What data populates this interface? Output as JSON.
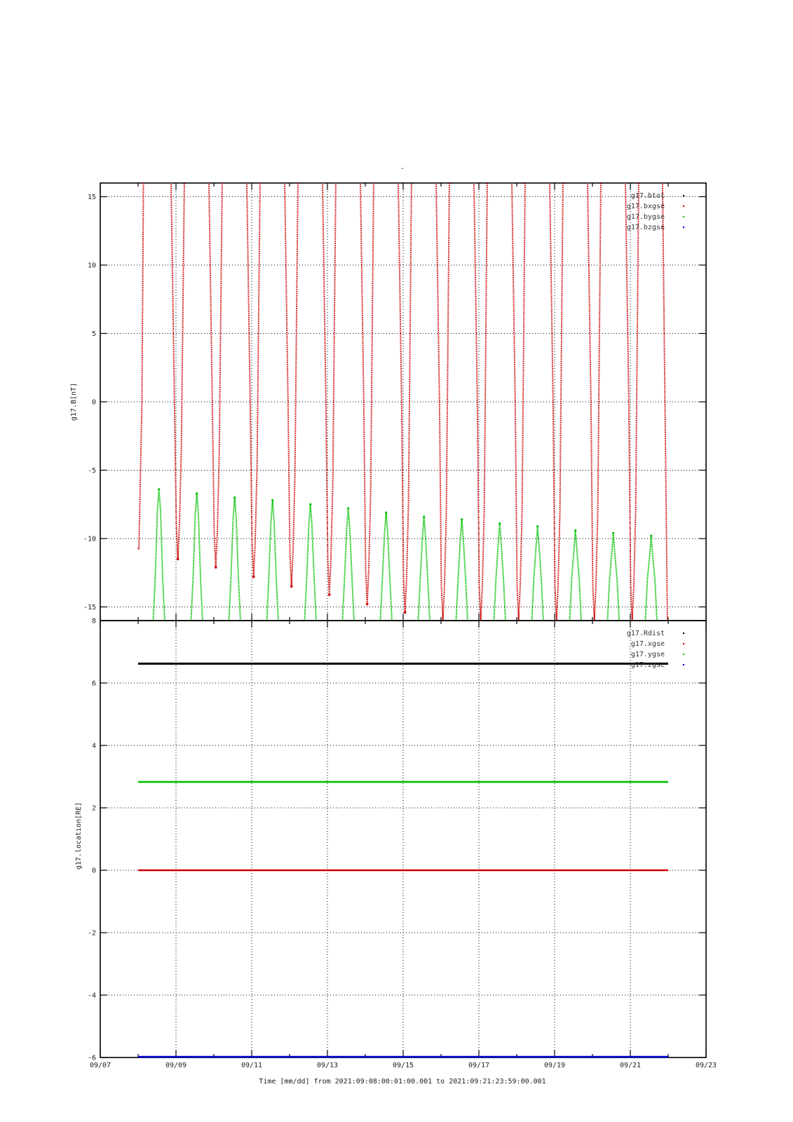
{
  "colors": {
    "btot": "#000000",
    "bxgse": "#cc0000",
    "bygse": "#00c000",
    "bzgse": "#0000cc",
    "grid": "#000000",
    "frame": "#000000"
  },
  "title": "-",
  "x_axis": {
    "ticks": [
      "09/07",
      "09/09",
      "09/11",
      "09/13",
      "09/15",
      "09/17",
      "09/19",
      "09/21",
      "09/23"
    ],
    "caption": "Time [mm/dd]  from 2021:09:08:00:01:00.001  to  2021:09:21:23:59:00.001"
  },
  "chart_data": [
    {
      "type": "scatter",
      "ylabel": "g17.B[nT]",
      "xlim_days": [
        7,
        23
      ],
      "ylim": [
        -16,
        16
      ],
      "yticks": [
        "15",
        "10",
        "5",
        "0",
        "-5",
        "-10",
        "-15"
      ],
      "ytick_values": [
        15,
        10,
        5,
        0,
        -5,
        -10,
        -15
      ],
      "grid": true,
      "legend_position": "top-right",
      "legend": [
        "g17.btot",
        "g17.bxgse",
        "g17.bygse",
        "g17.bzgse"
      ],
      "data_range_days": [
        8.0,
        22.0
      ],
      "series": [
        {
          "name": "g17.btot",
          "note": "off-scale (above 16 nT)",
          "values": []
        },
        {
          "name": "g17.bxgse",
          "pattern": "diurnal dips, minima (day, nT)",
          "minima": [
            [
              9.05,
              -11.5
            ],
            [
              10.05,
              -12.1
            ],
            [
              11.05,
              -12.8
            ],
            [
              12.05,
              -13.5
            ],
            [
              13.05,
              -14.1
            ],
            [
              14.05,
              -14.8
            ],
            [
              15.05,
              -15.4
            ],
            [
              16.05,
              -16.0
            ],
            [
              17.05,
              -16.0
            ],
            [
              18.05,
              -16.0
            ],
            [
              19.05,
              -16.0
            ],
            [
              20.05,
              -16.0
            ],
            [
              21.05,
              -16.0
            ]
          ],
          "start": [
            8.0,
            -10.7
          ]
        },
        {
          "name": "g17.bygse",
          "pattern": "diurnal peaks, maxima (day, nT)",
          "maxima": [
            [
              8.55,
              -6.4
            ],
            [
              9.55,
              -6.7
            ],
            [
              10.55,
              -7.0
            ],
            [
              11.55,
              -7.2
            ],
            [
              12.55,
              -7.5
            ],
            [
              13.55,
              -7.8
            ],
            [
              14.55,
              -8.1
            ],
            [
              15.55,
              -8.4
            ],
            [
              16.55,
              -8.6
            ],
            [
              17.55,
              -8.9
            ],
            [
              18.55,
              -9.1
            ],
            [
              19.55,
              -9.4
            ],
            [
              20.55,
              -9.6
            ],
            [
              21.55,
              -9.8
            ]
          ]
        },
        {
          "name": "g17.bzgse",
          "note": "off-scale (above 16 nT)",
          "values": []
        }
      ]
    },
    {
      "type": "line",
      "ylabel": "g17.location[RE]",
      "xlim_days": [
        7,
        23
      ],
      "ylim": [
        -6,
        8
      ],
      "yticks": [
        "8",
        "6",
        "4",
        "2",
        "0",
        "-2",
        "-4",
        "-6"
      ],
      "ytick_values": [
        8,
        6,
        4,
        2,
        0,
        -2,
        -4,
        -6
      ],
      "grid": true,
      "legend_position": "top-right",
      "legend": [
        "g17.Rdist",
        "g17.xgse",
        "g17.ygse",
        "g17.zgse"
      ],
      "data_range_days": [
        8.0,
        22.0
      ],
      "series": [
        {
          "name": "g17.Rdist",
          "value": 6.62
        },
        {
          "name": "g17.xgse",
          "value": 0.0
        },
        {
          "name": "g17.ygse",
          "value": 2.83
        },
        {
          "name": "g17.zgse",
          "value": -5.98
        }
      ]
    }
  ]
}
